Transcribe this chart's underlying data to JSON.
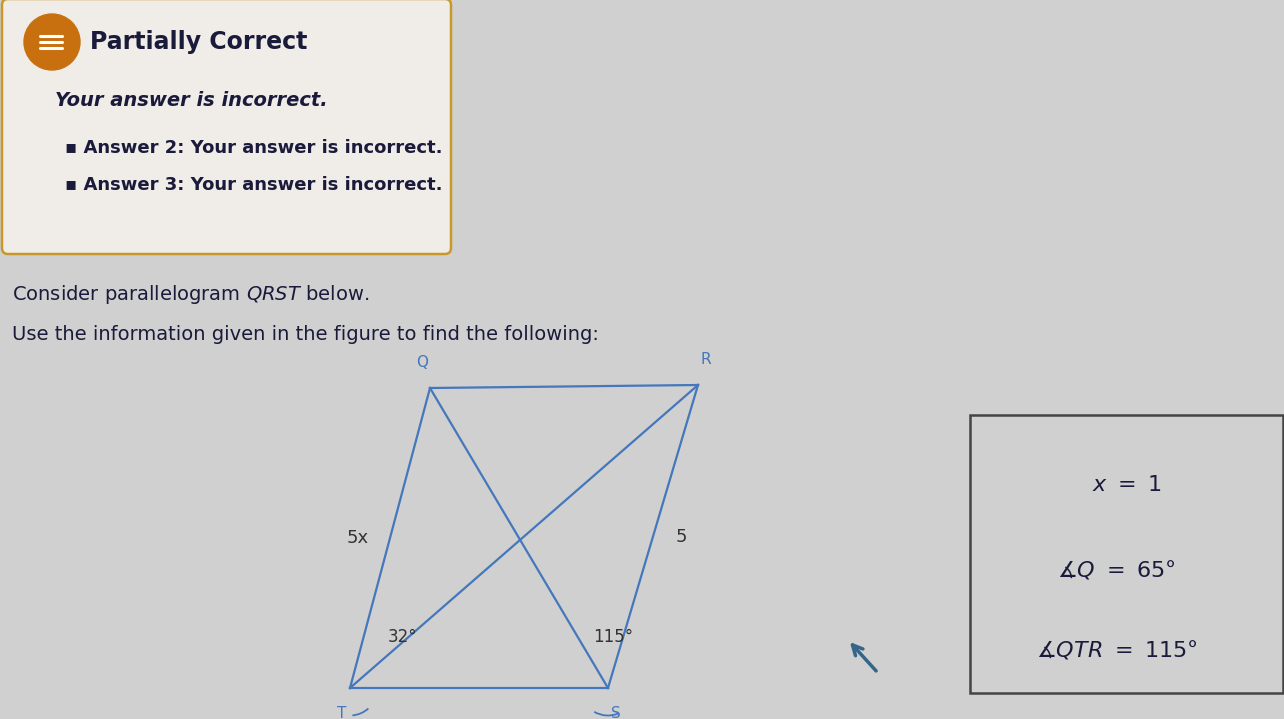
{
  "bg_color": "#d0d0d0",
  "feedback_box_facecolor": "#f0ede8",
  "feedback_box_edgecolor": "#c8982a",
  "feedback_icon_color": "#c87010",
  "title_text": "Partially Correct",
  "subtitle_text": "Your answer is incorrect.",
  "bullet1": "Answer 2: Your answer is incorrect.",
  "bullet2": "Answer 3: Your answer is incorrect.",
  "para_color": "#4477bb",
  "text_color": "#1a1a3a",
  "answer_box_edgecolor": "#444444",
  "Q": [
    0.365,
    0.695
  ],
  "R": [
    0.575,
    0.695
  ],
  "T": [
    0.265,
    0.155
  ],
  "S": [
    0.475,
    0.155
  ],
  "angle_T": "32°",
  "angle_S": "115°",
  "label_5x": "5x",
  "label_5": "5",
  "cursor_color": "#336688"
}
